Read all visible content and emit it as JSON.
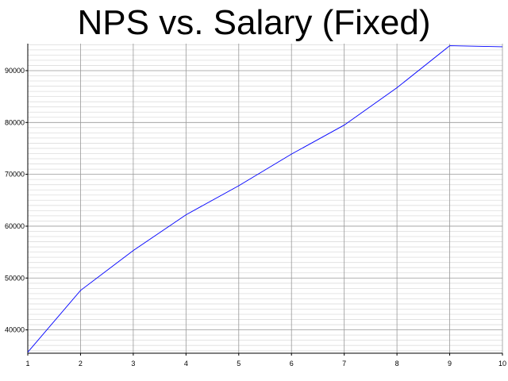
{
  "chart_data": {
    "type": "line",
    "title": "NPS vs. Salary (Fixed)",
    "xlabel": "",
    "ylabel": "",
    "x": [
      1,
      2,
      3,
      4,
      5,
      6,
      7,
      8,
      9,
      10
    ],
    "series": [
      {
        "values": [
          35700,
          47600,
          55300,
          62200,
          67800,
          73900,
          79500,
          86700,
          94800,
          94600
        ]
      }
    ],
    "xlim": [
      1,
      10
    ],
    "ylim": [
      35500,
      95200
    ],
    "x_ticks": [
      "1",
      "2",
      "3",
      "4",
      "5",
      "6",
      "7",
      "8",
      "9",
      "10"
    ],
    "y_ticks": [
      "40000",
      "50000",
      "60000",
      "70000",
      "80000",
      "90000"
    ],
    "y_tick_values": [
      40000,
      50000,
      60000,
      70000,
      80000,
      90000
    ],
    "y_minor_step": 1000,
    "grid": true,
    "line_color": "#0000ff",
    "major_grid_color": "#999999",
    "minor_grid_color": "#dddddd"
  }
}
